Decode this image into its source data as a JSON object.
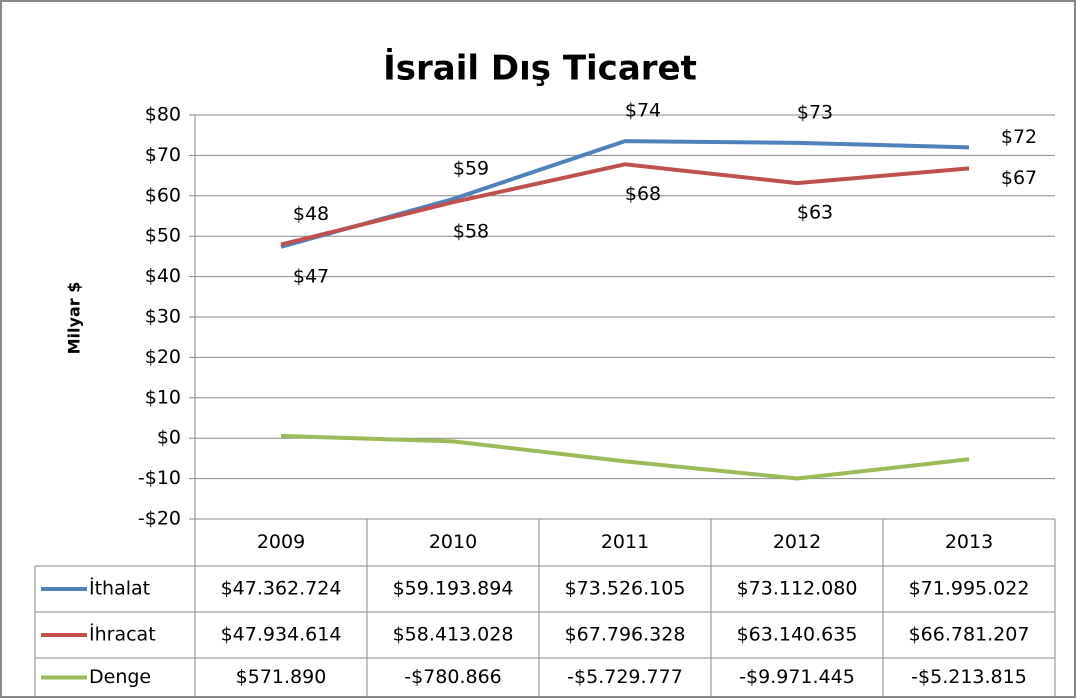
{
  "chart_data": {
    "type": "line",
    "title": "İsrail Dış Ticaret",
    "y_label": "Milyar $",
    "categories": [
      "2009",
      "2010",
      "2011",
      "2012",
      "2013"
    ],
    "ylim": [
      -20,
      80
    ],
    "yticks": [
      {
        "value": -20,
        "label": "-$20"
      },
      {
        "value": -10,
        "label": "-$10"
      },
      {
        "value": 0,
        "label": "$0"
      },
      {
        "value": 10,
        "label": "$10"
      },
      {
        "value": 20,
        "label": "$20"
      },
      {
        "value": 30,
        "label": "$30"
      },
      {
        "value": 40,
        "label": "$40"
      },
      {
        "value": 50,
        "label": "$50"
      },
      {
        "value": 60,
        "label": "$60"
      },
      {
        "value": 70,
        "label": "$70"
      },
      {
        "value": 80,
        "label": "$80"
      }
    ],
    "grid": true,
    "series": [
      {
        "name": "İthalat",
        "color": "#4f81bd",
        "values": [
          47.362724,
          59.193894,
          73.526105,
          73.11208,
          71.995022
        ],
        "value_labels": [
          "$47",
          "$59",
          "$74",
          "$73",
          "$72"
        ],
        "table_labels": [
          "$47.362.724",
          "$59.193.894",
          "$73.526.105",
          "$73.112.080",
          "$71.995.022"
        ]
      },
      {
        "name": "İhracat",
        "color": "#c0504d",
        "values": [
          47.934614,
          58.413028,
          67.796328,
          63.140635,
          66.781207
        ],
        "value_labels": [
          "$48",
          "$58",
          "$68",
          "$63",
          "$67"
        ],
        "table_labels": [
          "$47.934.614",
          "$58.413.028",
          "$67.796.328",
          "$63.140.635",
          "$66.781.207"
        ]
      },
      {
        "name": "Denge",
        "color": "#9bbb59",
        "values": [
          0.57189,
          -0.780866,
          -5.729777,
          -9.971445,
          -5.213815
        ],
        "table_labels": [
          "$571.890",
          "-$780.866",
          "-$5.729.777",
          "-$9.971.445",
          "-$5.213.815"
        ]
      }
    ]
  }
}
